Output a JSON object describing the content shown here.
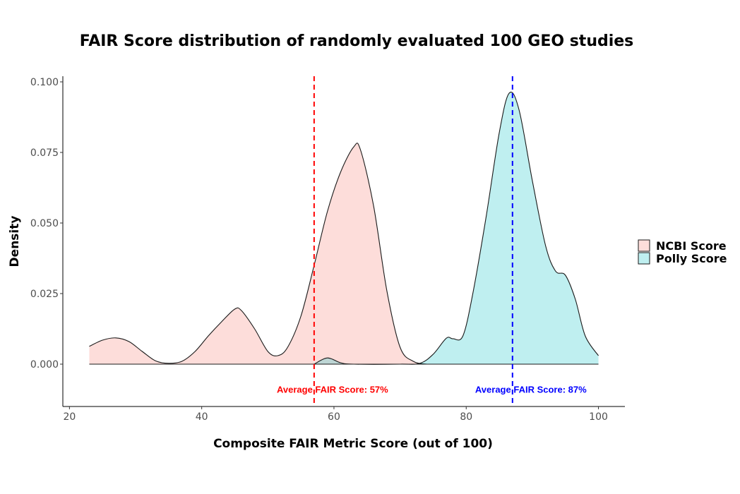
{
  "chart_data": {
    "type": "area",
    "title": "FAIR Score distribution of randomly evaluated 100 GEO studies",
    "xlabel": "Composite FAIR Metric Score (out of 100)",
    "ylabel": "Density",
    "xlim": [
      19,
      104
    ],
    "ylim": [
      -0.015,
      0.102
    ],
    "xticks": [
      20,
      40,
      60,
      80,
      100
    ],
    "yticks": [
      0.0,
      0.025,
      0.05,
      0.075,
      0.1
    ],
    "ytick_labels": [
      "0.000",
      "0.025",
      "0.050",
      "0.075",
      "0.100"
    ],
    "xtick_labels": [
      "20",
      "40",
      "60",
      "80",
      "100"
    ],
    "grid": false,
    "legend_position": "right",
    "series": [
      {
        "name": "NCBI Score",
        "color": "#F8766D",
        "points": [
          [
            23,
            0.0063
          ],
          [
            25,
            0.0085
          ],
          [
            27,
            0.0093
          ],
          [
            29,
            0.008
          ],
          [
            31,
            0.0045
          ],
          [
            33,
            0.0012
          ],
          [
            35,
            0.0003
          ],
          [
            37,
            0.001
          ],
          [
            39,
            0.0045
          ],
          [
            41,
            0.01
          ],
          [
            43,
            0.015
          ],
          [
            45,
            0.0195
          ],
          [
            46,
            0.019
          ],
          [
            48,
            0.0125
          ],
          [
            50,
            0.0045
          ],
          [
            51.5,
            0.003
          ],
          [
            53,
            0.006
          ],
          [
            55,
            0.017
          ],
          [
            57,
            0.035
          ],
          [
            59,
            0.054
          ],
          [
            61,
            0.068
          ],
          [
            63,
            0.077
          ],
          [
            64,
            0.076
          ],
          [
            66,
            0.056
          ],
          [
            68,
            0.026
          ],
          [
            70,
            0.006
          ],
          [
            72,
            0.001
          ],
          [
            74,
            0.0
          ]
        ]
      },
      {
        "name": "Polly Score",
        "color": "#00BFC4",
        "points": [
          [
            57,
            0.0
          ],
          [
            59,
            0.0022
          ],
          [
            61,
            0.0005
          ],
          [
            63,
            0.0
          ],
          [
            70,
            0.0
          ],
          [
            73,
            0.0003
          ],
          [
            75,
            0.0035
          ],
          [
            77,
            0.0092
          ],
          [
            78,
            0.009
          ],
          [
            79.5,
            0.01
          ],
          [
            81,
            0.025
          ],
          [
            83,
            0.052
          ],
          [
            85,
            0.082
          ],
          [
            86.5,
            0.096
          ],
          [
            88,
            0.09
          ],
          [
            90,
            0.065
          ],
          [
            92,
            0.042
          ],
          [
            93.5,
            0.033
          ],
          [
            95,
            0.0315
          ],
          [
            96.5,
            0.023
          ],
          [
            98,
            0.01
          ],
          [
            100,
            0.003
          ]
        ]
      }
    ],
    "annotations": [
      {
        "x": 57,
        "color": "#FF0000",
        "label": "Average FAIR Score: 57%"
      },
      {
        "x": 87,
        "color": "#0000FF",
        "label": "Average FAIR Score: 87%"
      }
    ]
  }
}
